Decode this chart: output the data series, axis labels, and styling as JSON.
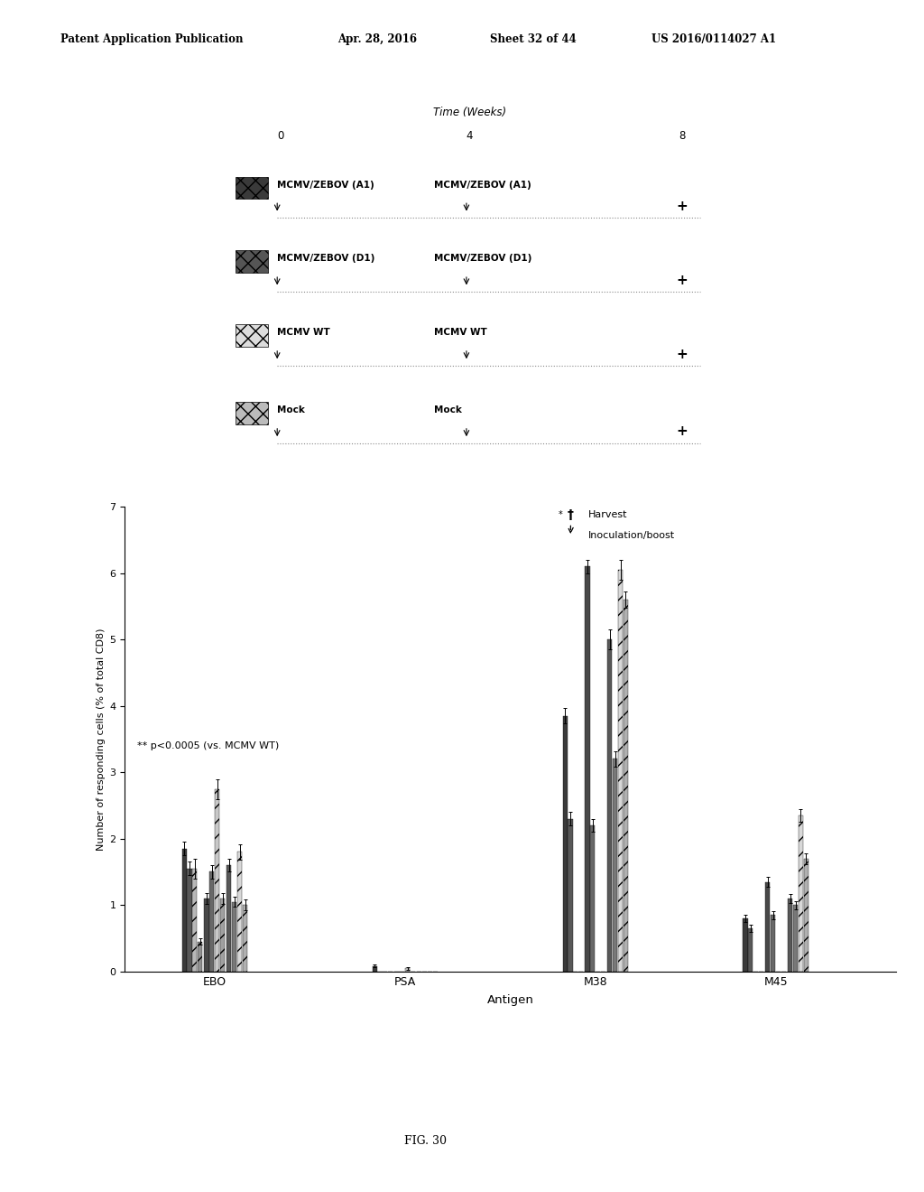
{
  "header_line1": "Patent Application Publication",
  "header_date": "Apr. 28, 2016",
  "header_sheet": "Sheet 32 of 44",
  "header_patent": "US 2016/0114027 A1",
  "fig_label": "FIG. 30",
  "timeline": {
    "title": "Time (Weeks)",
    "t0": "0",
    "t4": "4",
    "t8": "8",
    "groups": [
      {
        "label": "MCMV/ZEBOV (A1)",
        "label2": "MCMV/ZEBOV (A1)",
        "sq_color": "#3c3c3c",
        "sq_hatch": "xxx"
      },
      {
        "label": "MCMV/ZEBOV (D1)",
        "label2": "MCMV/ZEBOV (D1)",
        "sq_color": "#5a5a5a",
        "sq_hatch": "xxx"
      },
      {
        "label": "MCMV WT",
        "label2": "MCMV WT",
        "sq_color": "#cccccc",
        "sq_hatch": "xxx"
      },
      {
        "label": "Mock",
        "label2": "Mock",
        "sq_color": "#aaaaaa",
        "sq_hatch": "xxx"
      }
    ]
  },
  "bar_chart": {
    "ylabel": "Number of responding cells (% of total CD8)",
    "xlabel": "Antigen",
    "ylim": [
      0,
      7
    ],
    "yticks": [
      0,
      1,
      2,
      3,
      4,
      5,
      6,
      7
    ],
    "annotation": "** p<0.0005 (vs. MCMV WT)",
    "antigens": [
      "EBO",
      "PSA",
      "M38",
      "M45"
    ],
    "antigen_centers": [
      1.0,
      2.9,
      4.8,
      6.6
    ],
    "xlim": [
      0.1,
      7.8
    ],
    "conditions": [
      "MCMV/ZEBOV (A1)",
      "MCMV/ZEBOV (D1)",
      "MCMV WT",
      "Mock"
    ],
    "colors_t1": [
      "#3a3a3a",
      "#585858",
      "#b8b8b8",
      "#909090"
    ],
    "colors_t2": [
      "#484848",
      "#686868",
      "#c8c8c8",
      "#a0a0a0"
    ],
    "colors_t3": [
      "#585858",
      "#787878",
      "#d8d8d8",
      "#b0b0b0"
    ],
    "hatches_t1": [
      "",
      "",
      "//",
      "//"
    ],
    "hatches_t2": [
      "",
      "",
      "//",
      "//"
    ],
    "hatches_t3": [
      "",
      "",
      "//",
      "//"
    ],
    "data_EBO_t1": [
      1.85,
      1.55,
      1.55,
      0.45
    ],
    "data_EBO_t2": [
      1.1,
      1.5,
      2.75,
      1.1
    ],
    "data_EBO_t3": [
      1.6,
      1.05,
      1.8,
      1.0
    ],
    "data_PSA_t1": [
      0.08,
      0.0,
      0.0,
      0.0
    ],
    "data_PSA_t2": [
      0.0,
      0.0,
      0.05,
      0.0
    ],
    "data_PSA_t3": [
      0.0,
      0.0,
      0.0,
      0.0
    ],
    "data_M38_t1": [
      3.85,
      2.3,
      0.0,
      0.0
    ],
    "data_M38_t2": [
      6.1,
      2.2,
      0.0,
      0.0
    ],
    "data_M38_t3": [
      5.0,
      3.2,
      6.05,
      5.6
    ],
    "data_M45_t1": [
      0.8,
      0.65,
      0.0,
      0.0
    ],
    "data_M45_t2": [
      1.35,
      0.85,
      0.0,
      0.0
    ],
    "data_M45_t3": [
      1.1,
      1.0,
      2.35,
      1.7
    ],
    "err_EBO_t1": [
      0.1,
      0.1,
      0.15,
      0.05
    ],
    "err_EBO_t2": [
      0.08,
      0.1,
      0.15,
      0.08
    ],
    "err_EBO_t3": [
      0.1,
      0.08,
      0.12,
      0.08
    ],
    "err_PSA_t1": [
      0.02,
      0.01,
      0.01,
      0.01
    ],
    "err_PSA_t2": [
      0.01,
      0.01,
      0.02,
      0.01
    ],
    "err_PSA_t3": [
      0.01,
      0.01,
      0.01,
      0.01
    ],
    "err_M38_t1": [
      0.12,
      0.1,
      0.0,
      0.0
    ],
    "err_M38_t2": [
      0.1,
      0.1,
      0.0,
      0.0
    ],
    "err_M38_t3": [
      0.15,
      0.12,
      0.15,
      0.12
    ],
    "err_M45_t1": [
      0.06,
      0.05,
      0.0,
      0.0
    ],
    "err_M45_t2": [
      0.08,
      0.06,
      0.0,
      0.0
    ],
    "err_M45_t3": [
      0.07,
      0.06,
      0.1,
      0.08
    ]
  }
}
